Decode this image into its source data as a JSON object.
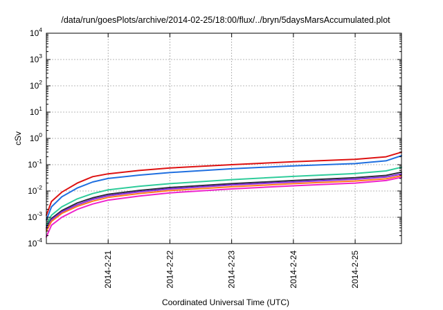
{
  "chart_data": {
    "type": "line",
    "title": "/data/run/goesPlots/archive/2014-02-25/18:00/flux/../bryn/5daysMarsAccumulated.plot",
    "xlabel": "Coordinated Universal Time (UTC)",
    "ylabel": "cSv",
    "x_scale": "time",
    "y_scale": "log",
    "xlim": [
      "2014-02-20 00:00",
      "2014-02-25 18:00"
    ],
    "ylim": [
      0.0001,
      10000
    ],
    "x_ticks": [
      "2014-2-21",
      "2014-2-22",
      "2014-2-23",
      "2014-2-24",
      "2014-2-25"
    ],
    "y_ticks": [
      {
        "base": "10",
        "exp": "-4"
      },
      {
        "base": "10",
        "exp": "-3"
      },
      {
        "base": "10",
        "exp": "-2"
      },
      {
        "base": "10",
        "exp": "-1"
      },
      {
        "base": "10",
        "exp": "0"
      },
      {
        "base": "10",
        "exp": "1"
      },
      {
        "base": "10",
        "exp": "2"
      },
      {
        "base": "10",
        "exp": "3"
      },
      {
        "base": "10",
        "exp": "4"
      }
    ],
    "grid": true,
    "series": [
      {
        "color": "#dd1111",
        "points": [
          [
            "2014-02-20 00:00",
            0.0012
          ],
          [
            "2014-02-20 02:00",
            0.004
          ],
          [
            "2014-02-20 06:00",
            0.009
          ],
          [
            "2014-02-20 12:00",
            0.02
          ],
          [
            "2014-02-20 18:00",
            0.035
          ],
          [
            "2014-02-21 00:00",
            0.045
          ],
          [
            "2014-02-21 12:00",
            0.06
          ],
          [
            "2014-02-22 00:00",
            0.075
          ],
          [
            "2014-02-23 00:00",
            0.1
          ],
          [
            "2014-02-24 00:00",
            0.13
          ],
          [
            "2014-02-25 00:00",
            0.16
          ],
          [
            "2014-02-25 12:00",
            0.2
          ],
          [
            "2014-02-25 18:00",
            0.3
          ]
        ]
      },
      {
        "color": "#1f6fe0",
        "points": [
          [
            "2014-02-20 00:00",
            0.0008
          ],
          [
            "2014-02-20 02:00",
            0.0025
          ],
          [
            "2014-02-20 06:00",
            0.006
          ],
          [
            "2014-02-20 12:00",
            0.013
          ],
          [
            "2014-02-20 18:00",
            0.022
          ],
          [
            "2014-02-21 00:00",
            0.03
          ],
          [
            "2014-02-21 12:00",
            0.04
          ],
          [
            "2014-02-22 00:00",
            0.05
          ],
          [
            "2014-02-23 00:00",
            0.07
          ],
          [
            "2014-02-24 00:00",
            0.09
          ],
          [
            "2014-02-25 00:00",
            0.11
          ],
          [
            "2014-02-25 12:00",
            0.14
          ],
          [
            "2014-02-25 18:00",
            0.22
          ]
        ]
      },
      {
        "color": "#2ecc9a",
        "points": [
          [
            "2014-02-20 00:00",
            0.0005
          ],
          [
            "2014-02-20 02:00",
            0.0012
          ],
          [
            "2014-02-20 06:00",
            0.0025
          ],
          [
            "2014-02-20 12:00",
            0.005
          ],
          [
            "2014-02-20 18:00",
            0.008
          ],
          [
            "2014-02-21 00:00",
            0.011
          ],
          [
            "2014-02-21 12:00",
            0.015
          ],
          [
            "2014-02-22 00:00",
            0.019
          ],
          [
            "2014-02-23 00:00",
            0.027
          ],
          [
            "2014-02-24 00:00",
            0.036
          ],
          [
            "2014-02-25 00:00",
            0.046
          ],
          [
            "2014-02-25 12:00",
            0.058
          ],
          [
            "2014-02-25 18:00",
            0.08
          ]
        ]
      },
      {
        "color": "#2c2c3a",
        "points": [
          [
            "2014-02-20 00:00",
            0.0004
          ],
          [
            "2014-02-20 02:00",
            0.0009
          ],
          [
            "2014-02-20 06:00",
            0.0018
          ],
          [
            "2014-02-20 12:00",
            0.0035
          ],
          [
            "2014-02-20 18:00",
            0.0055
          ],
          [
            "2014-02-21 00:00",
            0.0075
          ],
          [
            "2014-02-21 12:00",
            0.0105
          ],
          [
            "2014-02-22 00:00",
            0.0135
          ],
          [
            "2014-02-23 00:00",
            0.019
          ],
          [
            "2014-02-24 00:00",
            0.025
          ],
          [
            "2014-02-25 00:00",
            0.032
          ],
          [
            "2014-02-25 12:00",
            0.039
          ],
          [
            "2014-02-25 18:00",
            0.052
          ]
        ]
      },
      {
        "color": "#8a2be2",
        "points": [
          [
            "2014-02-20 00:00",
            0.00035
          ],
          [
            "2014-02-20 02:00",
            0.0008
          ],
          [
            "2014-02-20 06:00",
            0.0016
          ],
          [
            "2014-02-20 12:00",
            0.003
          ],
          [
            "2014-02-20 18:00",
            0.0048
          ],
          [
            "2014-02-21 00:00",
            0.0066
          ],
          [
            "2014-02-21 12:00",
            0.0093
          ],
          [
            "2014-02-22 00:00",
            0.012
          ],
          [
            "2014-02-23 00:00",
            0.017
          ],
          [
            "2014-02-24 00:00",
            0.022
          ],
          [
            "2014-02-25 00:00",
            0.028
          ],
          [
            "2014-02-25 12:00",
            0.034
          ],
          [
            "2014-02-25 18:00",
            0.044
          ]
        ]
      },
      {
        "color": "#ff7a1a",
        "points": [
          [
            "2014-02-20 00:00",
            0.0003
          ],
          [
            "2014-02-20 02:00",
            0.0007
          ],
          [
            "2014-02-20 06:00",
            0.0014
          ],
          [
            "2014-02-20 12:00",
            0.0026
          ],
          [
            "2014-02-20 18:00",
            0.0041
          ],
          [
            "2014-02-21 00:00",
            0.0057
          ],
          [
            "2014-02-21 12:00",
            0.008
          ],
          [
            "2014-02-22 00:00",
            0.0104
          ],
          [
            "2014-02-23 00:00",
            0.0145
          ],
          [
            "2014-02-24 00:00",
            0.019
          ],
          [
            "2014-02-25 00:00",
            0.024
          ],
          [
            "2014-02-25 12:00",
            0.029
          ],
          [
            "2014-02-25 18:00",
            0.038
          ]
        ]
      },
      {
        "color": "#ee22cc",
        "points": [
          [
            "2014-02-20 00:00",
            0.00018
          ],
          [
            "2014-02-20 02:00",
            0.0005
          ],
          [
            "2014-02-20 06:00",
            0.001
          ],
          [
            "2014-02-20 12:00",
            0.002
          ],
          [
            "2014-02-20 18:00",
            0.0032
          ],
          [
            "2014-02-21 00:00",
            0.0045
          ],
          [
            "2014-02-21 12:00",
            0.0064
          ],
          [
            "2014-02-22 00:00",
            0.0085
          ],
          [
            "2014-02-23 00:00",
            0.012
          ],
          [
            "2014-02-24 00:00",
            0.0158
          ],
          [
            "2014-02-25 00:00",
            0.02
          ],
          [
            "2014-02-25 12:00",
            0.025
          ],
          [
            "2014-02-25 18:00",
            0.033
          ]
        ]
      }
    ]
  }
}
